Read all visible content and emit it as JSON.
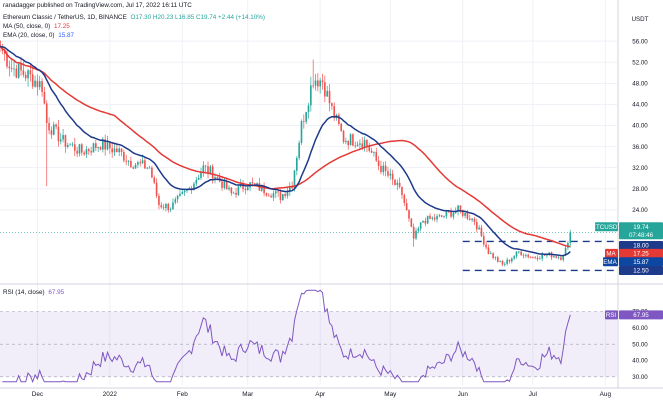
{
  "header": {
    "author": "ranadagger published on TradingView.com, Jul 17, 2022 16:11 UTC",
    "symbol": "Ethereum Classic / TetherUS, 1D, BINANCE",
    "ohlc": "O17.30 H20.23 L16.85 C19.74 +2.44 (+14.10%)",
    "ma_label": "MA (50, close, 0)",
    "ma_value": "17.25",
    "ema_label": "EMA (20, close, 0)",
    "ema_value": "15.87",
    "rsi_label": "RSI (14, close)",
    "rsi_value": "67.95"
  },
  "axis": {
    "currency": "USDT",
    "price_ticks": [
      "56.00",
      "52.00",
      "48.00",
      "44.00",
      "40.00",
      "36.00",
      "32.00",
      "28.00",
      "24.00"
    ],
    "rsi_ticks": [
      "70.00",
      "60.00",
      "50.00",
      "40.00",
      "30.00"
    ],
    "months": [
      "Dec",
      "2022",
      "Feb",
      "Mar",
      "Apr",
      "May",
      "Jun",
      "Jul",
      "Aug"
    ]
  },
  "tags": {
    "price": "ETCUSDT",
    "price_value": "19.74",
    "countdown": "07:48:46",
    "resistance": "18.00",
    "ma": "MA",
    "ma_value": "17.25",
    "ema": "EMA",
    "ema_value": "15.87",
    "support": "12.50",
    "rsi": "RSI",
    "rsi_value": "67.95"
  },
  "colors": {
    "up": "#26a69a",
    "down": "#ef5350",
    "ma": "#e53935",
    "ema": "#1e3a8a",
    "rsi": "#7e57c2",
    "level": "#1e3a8a",
    "ma_tag": "#e53935",
    "ema_tag": "#0d47a1"
  },
  "chart_data": [
    {
      "type": "candlestick",
      "title": "Ethereum Classic / TetherUS, 1D, BINANCE",
      "ylabel": "USDT",
      "ylim": [
        10.5,
        58.5
      ],
      "x_range": [
        "2021-11-15",
        "2022-08-06"
      ],
      "levels": [
        18.0,
        12.5
      ],
      "price_last": 19.74,
      "anchors": [
        {
          "date": "2021-11-15",
          "close": 55.0
        },
        {
          "date": "2021-11-20",
          "close": 51.0
        },
        {
          "date": "2021-11-27",
          "close": 49.5
        },
        {
          "date": "2021-12-03",
          "close": 47.5
        },
        {
          "date": "2021-12-05",
          "close": 40.5
        },
        {
          "date": "2021-12-12",
          "close": 37.0
        },
        {
          "date": "2021-12-20",
          "close": 35.0
        },
        {
          "date": "2021-12-28",
          "close": 36.5
        },
        {
          "date": "2022-01-05",
          "close": 35.0
        },
        {
          "date": "2022-01-10",
          "close": 33.0
        },
        {
          "date": "2022-01-18",
          "close": 32.0
        },
        {
          "date": "2022-01-22",
          "close": 25.0
        },
        {
          "date": "2022-01-27",
          "close": 24.5
        },
        {
          "date": "2022-02-04",
          "close": 28.0
        },
        {
          "date": "2022-02-10",
          "close": 32.0
        },
        {
          "date": "2022-02-14",
          "close": 31.0
        },
        {
          "date": "2022-02-22",
          "close": 27.0
        },
        {
          "date": "2022-03-01",
          "close": 29.0
        },
        {
          "date": "2022-03-07",
          "close": 28.0
        },
        {
          "date": "2022-03-15",
          "close": 26.5
        },
        {
          "date": "2022-03-20",
          "close": 29.0
        },
        {
          "date": "2022-03-24",
          "close": 40.0
        },
        {
          "date": "2022-03-29",
          "close": 49.0
        },
        {
          "date": "2022-04-02",
          "close": 48.5
        },
        {
          "date": "2022-04-06",
          "close": 43.0
        },
        {
          "date": "2022-04-11",
          "close": 37.5
        },
        {
          "date": "2022-04-20",
          "close": 37.0
        },
        {
          "date": "2022-04-26",
          "close": 32.5
        },
        {
          "date": "2022-05-01",
          "close": 30.0
        },
        {
          "date": "2022-05-06",
          "close": 27.0
        },
        {
          "date": "2022-05-11",
          "close": 18.5
        },
        {
          "date": "2022-05-15",
          "close": 22.0
        },
        {
          "date": "2022-05-22",
          "close": 22.5
        },
        {
          "date": "2022-05-30",
          "close": 24.0
        },
        {
          "date": "2022-06-06",
          "close": 22.0
        },
        {
          "date": "2022-06-12",
          "close": 16.0
        },
        {
          "date": "2022-06-18",
          "close": 13.5
        },
        {
          "date": "2022-06-25",
          "close": 16.0
        },
        {
          "date": "2022-07-01",
          "close": 15.0
        },
        {
          "date": "2022-07-08",
          "close": 15.5
        },
        {
          "date": "2022-07-13",
          "close": 15.0
        },
        {
          "date": "2022-07-16",
          "close": 17.3
        },
        {
          "date": "2022-07-17",
          "close": 19.74
        }
      ],
      "series": [
        {
          "name": "MA (50, close, 0)",
          "last": 17.25
        },
        {
          "name": "EMA (20, close, 0)",
          "last": 15.87
        }
      ]
    },
    {
      "type": "line",
      "title": "RSI (14, close)",
      "ylim": [
        25,
        85
      ],
      "ticks": [
        70,
        60,
        50,
        40,
        30
      ],
      "band": [
        30,
        70
      ],
      "series": [
        {
          "name": "RSI (14, close)",
          "last": 67.95
        }
      ]
    }
  ]
}
